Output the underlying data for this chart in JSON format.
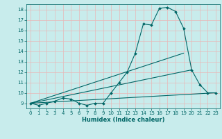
{
  "xlabel": "Humidex (Indice chaleur)",
  "ylabel": "",
  "bg_color": "#c8ecec",
  "grid_color": "#d4d4d4",
  "line_color": "#006666",
  "xlim": [
    -0.5,
    23.5
  ],
  "ylim": [
    8.5,
    18.5
  ],
  "xticks": [
    0,
    1,
    2,
    3,
    4,
    5,
    6,
    7,
    8,
    9,
    10,
    11,
    12,
    13,
    14,
    15,
    16,
    17,
    18,
    19,
    20,
    21,
    22,
    23
  ],
  "yticks": [
    9,
    10,
    11,
    12,
    13,
    14,
    15,
    16,
    17,
    18
  ],
  "line1": {
    "x": [
      0,
      1,
      2,
      3,
      4,
      5,
      6,
      7,
      8,
      9,
      10,
      11,
      12,
      13,
      14,
      15,
      16,
      17,
      18,
      19,
      20,
      21,
      22,
      23
    ],
    "y": [
      9,
      8.8,
      9,
      9.2,
      9.5,
      9.4,
      9,
      8.8,
      9,
      9,
      10,
      11,
      12,
      13.8,
      16.6,
      16.5,
      18.1,
      18.2,
      17.8,
      16.2,
      12.2,
      10.8,
      10,
      10
    ]
  },
  "line2": {
    "x": [
      0,
      23
    ],
    "y": [
      9,
      10
    ]
  },
  "line3": {
    "x": [
      0,
      19
    ],
    "y": [
      9,
      13.8
    ]
  },
  "line4": {
    "x": [
      0,
      20
    ],
    "y": [
      9,
      12.2
    ]
  }
}
